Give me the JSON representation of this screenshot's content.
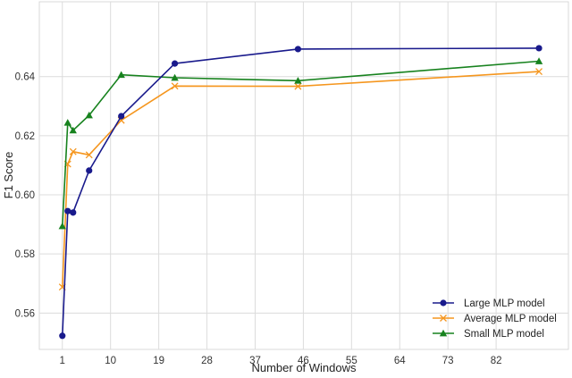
{
  "chart_data": {
    "type": "line",
    "title": "",
    "xlabel": "Number of Windows",
    "ylabel": "F1 Score",
    "xlim": [
      -3.3,
      95.5
    ],
    "ylim": [
      0.5477,
      0.6653
    ],
    "xticks": [
      1,
      10,
      19,
      28,
      37,
      46,
      55,
      64,
      73,
      82
    ],
    "yticks": [
      0.56,
      0.58,
      0.6,
      0.62,
      0.64
    ],
    "ytick_labels": [
      "0.56",
      "0.58",
      "0.60",
      "0.62",
      "0.64"
    ],
    "grid": true,
    "legend_position": "lower right",
    "x": [
      1,
      2,
      3,
      6,
      12,
      22,
      45,
      90
    ],
    "series": [
      {
        "name": "Large MLP model",
        "color": "#191a8c",
        "marker": "circle",
        "values": [
          0.5523,
          0.5945,
          0.594,
          0.6082,
          0.6266,
          0.6444,
          0.6493,
          0.6496
        ]
      },
      {
        "name": "Average MLP model",
        "color": "#f5961e",
        "marker": "x",
        "values": [
          0.5688,
          0.6104,
          0.6146,
          0.6135,
          0.6252,
          0.6368,
          0.6367,
          0.6417
        ]
      },
      {
        "name": "Small MLP model",
        "color": "#17821e",
        "marker": "triangle",
        "values": [
          0.5894,
          0.6244,
          0.6218,
          0.6269,
          0.6406,
          0.6396,
          0.6386,
          0.6452
        ]
      }
    ]
  }
}
